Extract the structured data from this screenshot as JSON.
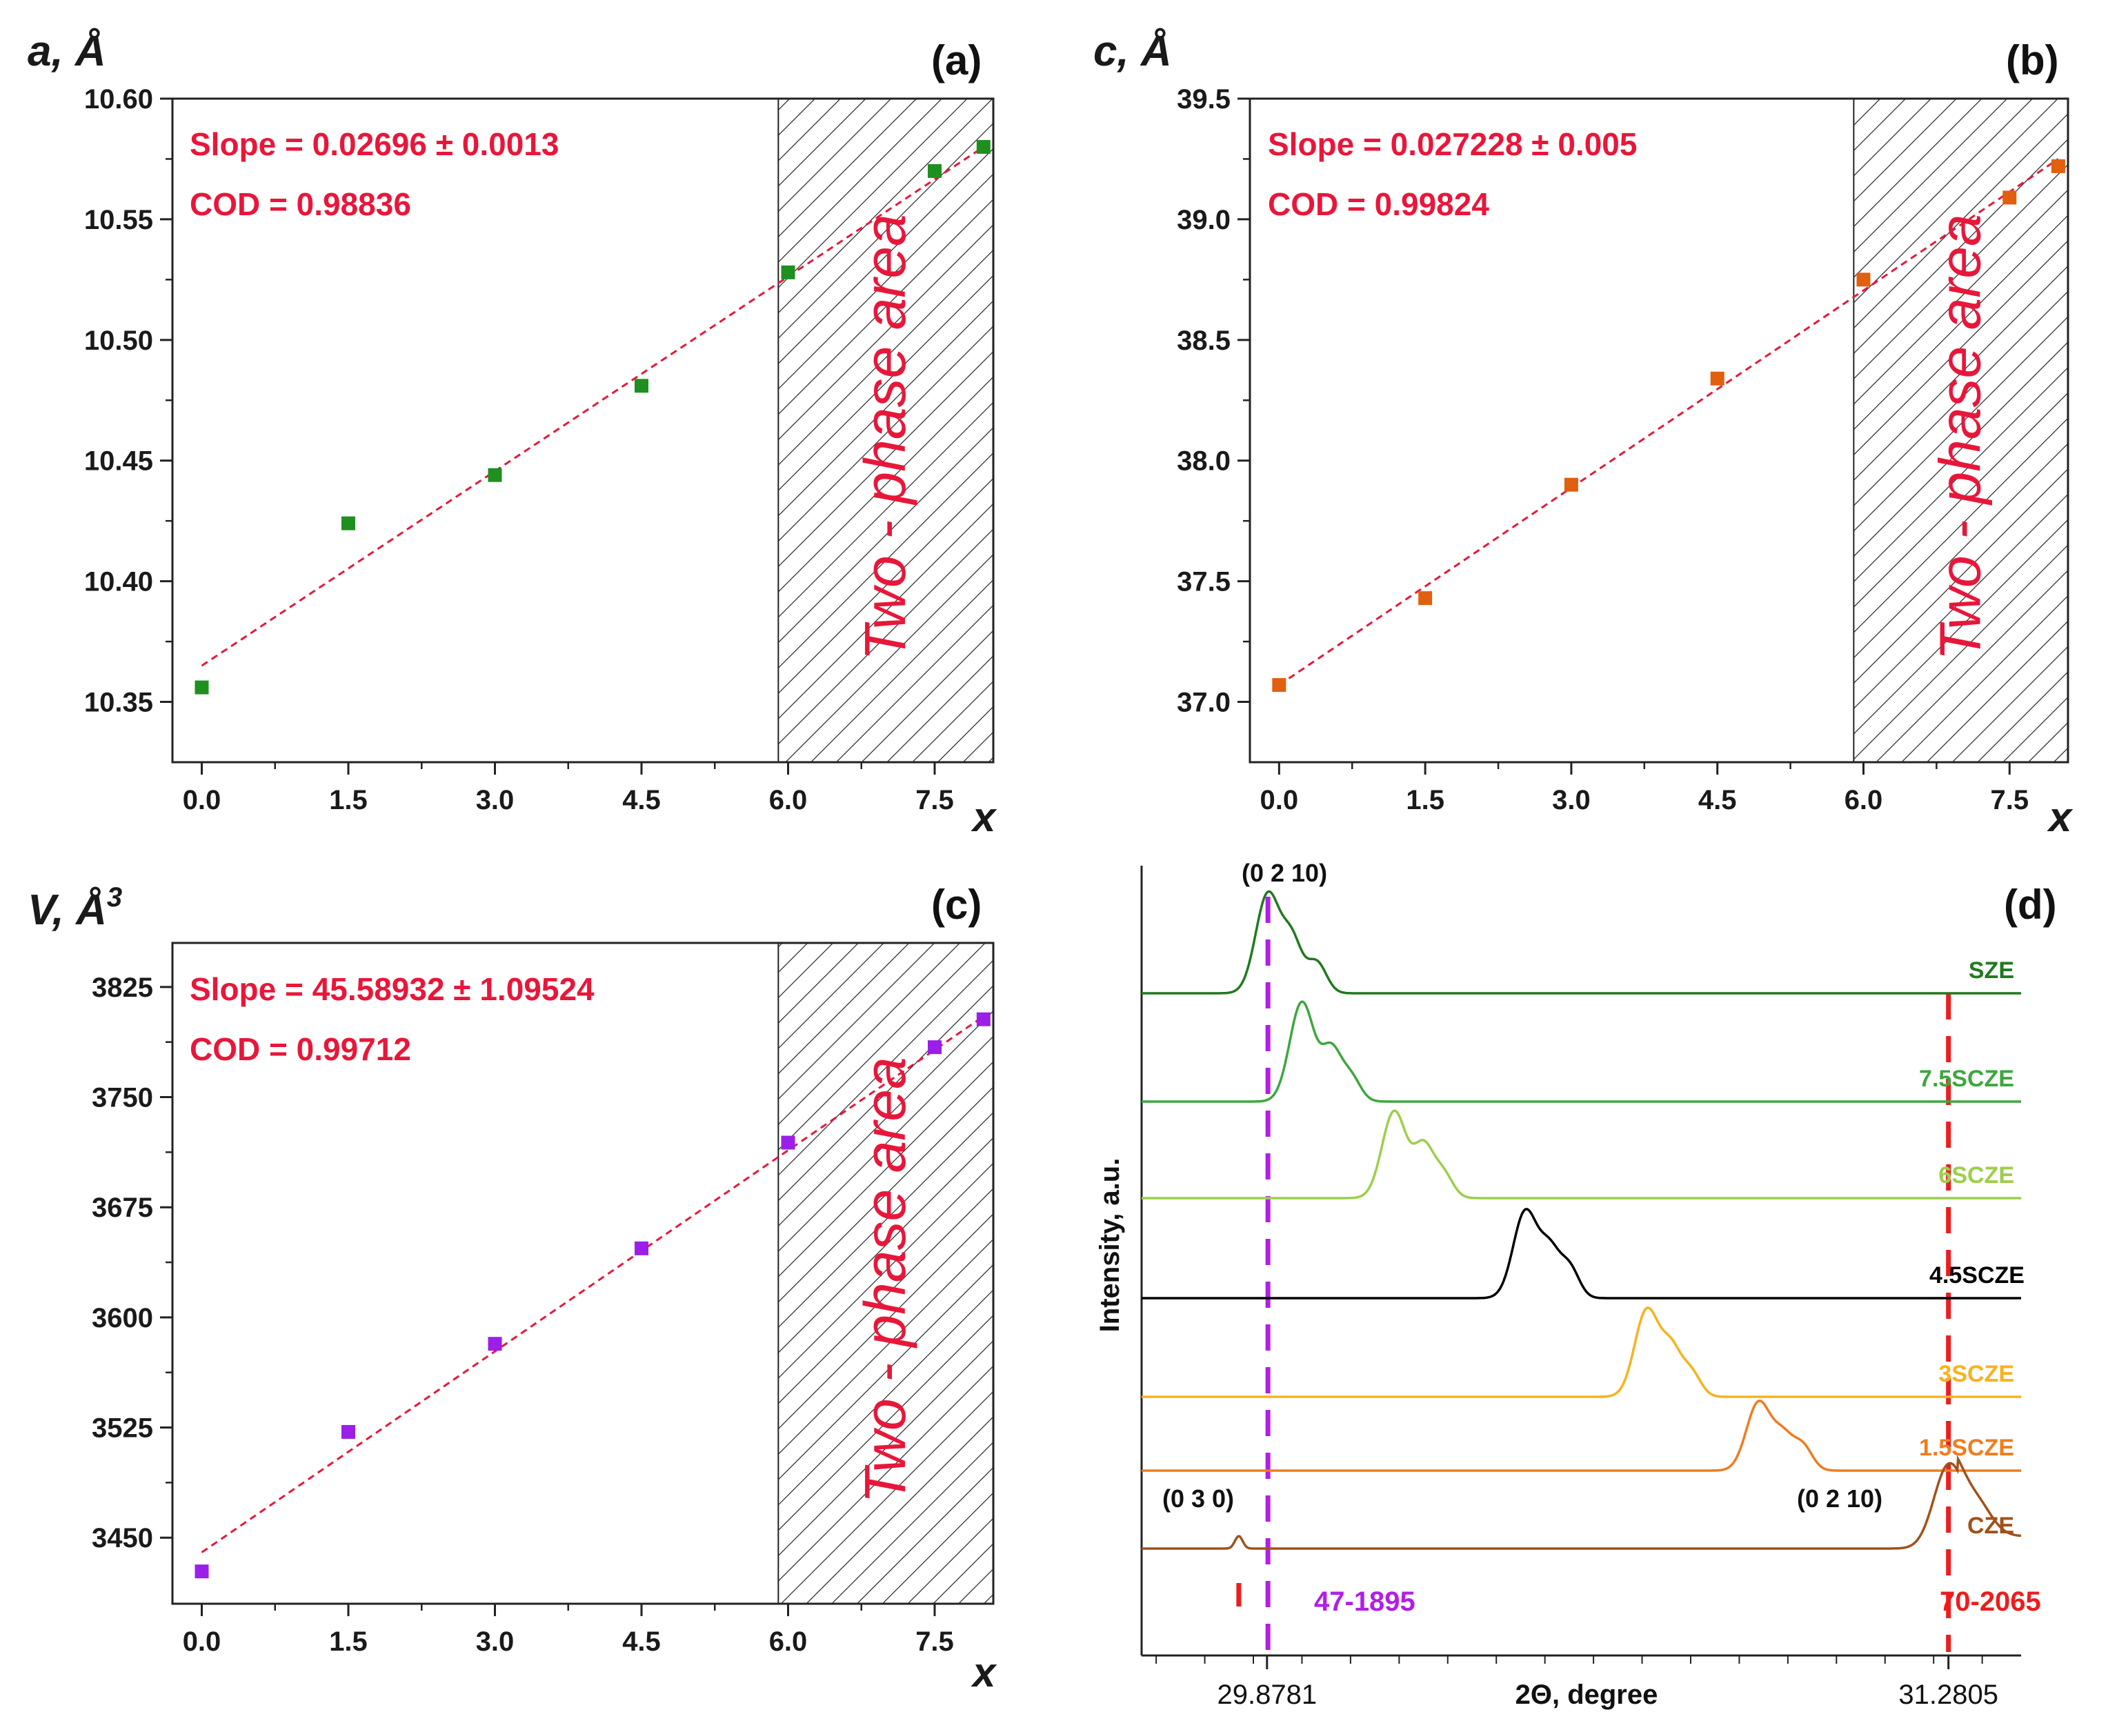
{
  "chart_data": [
    {
      "panel": "(a)",
      "type": "scatter",
      "ylabel": "a, Å",
      "xlabel": "x",
      "xlim": [
        -0.3,
        8.1
      ],
      "ylim": [
        10.325,
        10.6
      ],
      "xticks": [
        "0.0",
        "1.5",
        "3.0",
        "4.5",
        "6.0",
        "7.5"
      ],
      "yticks": [
        "10.35",
        "10.40",
        "10.45",
        "10.50",
        "10.55",
        "10.60"
      ],
      "points": {
        "x": [
          0,
          1.5,
          3.0,
          4.5,
          6.0,
          7.5,
          8.0
        ],
        "y": [
          10.356,
          10.424,
          10.444,
          10.481,
          10.528,
          10.57,
          10.58
        ]
      },
      "fit": {
        "x": [
          0,
          8.0
        ],
        "y": [
          10.365,
          10.58
        ]
      },
      "marker_color": "#1f8f1f",
      "annotation_lines": [
        "Slope = 0.02696 ± 0.0013",
        "COD = 0.98836"
      ],
      "region": {
        "from": 5.9,
        "to": 8.1,
        "label": "Two - phase area"
      }
    },
    {
      "panel": "(b)",
      "type": "scatter",
      "ylabel": "c, Å",
      "xlabel": "x",
      "xlim": [
        -0.3,
        8.1
      ],
      "ylim": [
        36.75,
        39.5
      ],
      "xticks": [
        "0.0",
        "1.5",
        "3.0",
        "4.5",
        "6.0",
        "7.5"
      ],
      "yticks": [
        "37.0",
        "37.5",
        "38.0",
        "38.5",
        "39.0",
        "39.5"
      ],
      "points": {
        "x": [
          0,
          1.5,
          3.0,
          4.5,
          6.0,
          7.5,
          8.0
        ],
        "y": [
          37.07,
          37.43,
          37.9,
          38.34,
          38.75,
          39.09,
          39.22
        ]
      },
      "fit": {
        "x": [
          0,
          8.0
        ],
        "y": [
          37.07,
          39.25
        ]
      },
      "marker_color": "#e0600f",
      "annotation_lines": [
        "Slope = 0.027228 ± 0.005",
        "COD = 0.99824"
      ],
      "region": {
        "from": 5.9,
        "to": 8.1,
        "label": "Two - phase area"
      }
    },
    {
      "panel": "(c)",
      "type": "scatter",
      "ylabel": "V, Å",
      "ylabel_sup": "3",
      "xlabel": "x",
      "xlim": [
        -0.3,
        8.1
      ],
      "ylim": [
        3405,
        3855
      ],
      "xticks": [
        "0.0",
        "1.5",
        "3.0",
        "4.5",
        "6.0",
        "7.5"
      ],
      "yticks": [
        "3450",
        "3525",
        "3600",
        "3675",
        "3750",
        "3825"
      ],
      "points": {
        "x": [
          0,
          1.5,
          3.0,
          4.5,
          6.0,
          7.5,
          8.0
        ],
        "y": [
          3427,
          3522,
          3582,
          3647,
          3719,
          3784,
          3803
        ]
      },
      "fit": {
        "x": [
          0,
          8.0
        ],
        "y": [
          3440,
          3805
        ]
      },
      "marker_color": "#9b1fe8",
      "annotation_lines": [
        "Slope = 45.58932 ± 1.09524",
        "COD = 0.99712"
      ],
      "region": {
        "from": 5.9,
        "to": 8.1,
        "label": "Two - phase area"
      }
    },
    {
      "panel": "(d)",
      "type": "line",
      "ylabel": "Intensity, a.u.",
      "xlabel": "2Θ, degree",
      "xlim": [
        29.62,
        31.43
      ],
      "xticks": [
        "29.8781",
        "31.2805"
      ],
      "xtick_values": [
        29.8781,
        31.2805
      ],
      "series": [
        {
          "name": "SZE",
          "color": "#1f7a1f",
          "baseline": 0.18,
          "peaks": [
            [
              29.88,
              0.16,
              0.025
            ],
            [
              29.93,
              0.08,
              0.02
            ],
            [
              29.98,
              0.05,
              0.02
            ]
          ]
        },
        {
          "name": "7.5SCZE",
          "color": "#3da73d",
          "baseline": 1.1,
          "peaks": [
            [
              29.95,
              0.16,
              0.025
            ],
            [
              30.01,
              0.08,
              0.02
            ],
            [
              30.05,
              0.04,
              0.02
            ]
          ]
        },
        {
          "name": "6SCZE",
          "color": "#9ccf4a",
          "baseline": 1.85,
          "peaks": [
            [
              30.14,
              0.14,
              0.025
            ],
            [
              30.2,
              0.08,
              0.02
            ],
            [
              30.24,
              0.04,
              0.02
            ]
          ]
        },
        {
          "name": "4.5SCZE",
          "color": "#000000",
          "baseline": 2.8,
          "peaks": [
            [
              30.41,
              0.14,
              0.025
            ],
            [
              30.46,
              0.07,
              0.02
            ],
            [
              30.5,
              0.05,
              0.02
            ]
          ]
        },
        {
          "name": "3SCZE",
          "color": "#f7b21e",
          "baseline": 3.6,
          "peaks": [
            [
              30.66,
              0.14,
              0.025
            ],
            [
              30.71,
              0.07,
              0.02
            ],
            [
              30.75,
              0.04,
              0.02
            ]
          ]
        },
        {
          "name": "1.5SCZE",
          "color": "#f07c1e",
          "baseline": 4.5,
          "peaks": [
            [
              30.89,
              0.11,
              0.025
            ],
            [
              30.94,
              0.05,
              0.02
            ],
            [
              30.98,
              0.04,
              0.02
            ]
          ]
        },
        {
          "name": "CZE",
          "color": "#a0521a",
          "baseline": 5.1,
          "peaks": [
            [
              31.28,
              0.13,
              0.03
            ],
            [
              31.34,
              0.05,
              0.03
            ],
            [
              29.82,
              0.02,
              0.008
            ]
          ]
        }
      ],
      "reference_lines": [
        {
          "x": 29.88,
          "label": "47-1895",
          "color": "#b21ee8",
          "style": "dashed"
        },
        {
          "x": 31.2805,
          "label": "70-2065",
          "color": "#ee1c1c",
          "style": "dashed"
        },
        {
          "x": 29.82,
          "label": "",
          "color": "#ee1c1c",
          "style": "dashed",
          "short": true
        }
      ],
      "peak_labels": [
        "(0 2 10)",
        "(0 3 0)",
        "(0 2 10)"
      ]
    }
  ]
}
